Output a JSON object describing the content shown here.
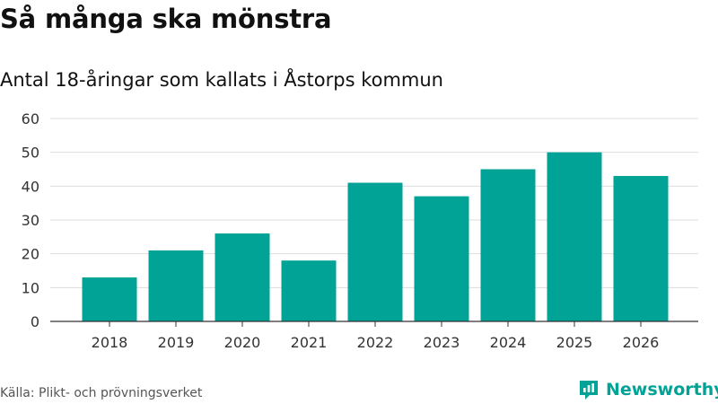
{
  "header": {
    "title": "Så många ska mönstra",
    "subtitle": "Antal 18-åringar som kallats i Åstorps kommun"
  },
  "footer": {
    "source": "Källa: Plikt- och prövningsverket",
    "brand": "Newsworthy"
  },
  "colors": {
    "bar": "#00a396",
    "grid": "#dddddd",
    "axis": "#333333"
  },
  "chart_data": {
    "type": "bar",
    "title": "Så många ska mönstra",
    "subtitle": "Antal 18-åringar som kallats i Åstorps kommun",
    "xlabel": "",
    "ylabel": "",
    "categories": [
      "2018",
      "2019",
      "2020",
      "2021",
      "2022",
      "2023",
      "2024",
      "2025",
      "2026"
    ],
    "values": [
      13,
      21,
      26,
      18,
      41,
      37,
      45,
      50,
      43
    ],
    "ylim": [
      0,
      60
    ],
    "yticks": [
      0,
      10,
      20,
      30,
      40,
      50,
      60
    ],
    "grid": true,
    "legend": "none"
  }
}
